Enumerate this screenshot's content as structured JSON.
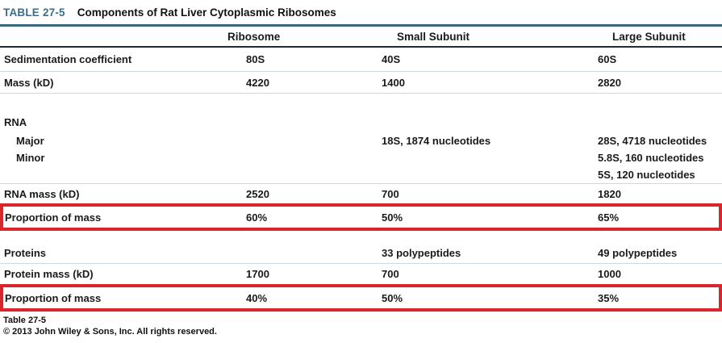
{
  "header": {
    "tag": "TABLE 27-5",
    "title": "Components of Rat Liver Cytoplasmic Ribosomes"
  },
  "table": {
    "columns": [
      "",
      "Ribosome",
      "Small Subunit",
      "Large Subunit"
    ],
    "rows": [
      {
        "label": "Sedimentation coefficient",
        "values": [
          "80S",
          "40S",
          "60S"
        ]
      },
      {
        "label": "Mass (kD)",
        "values": [
          "4220",
          "1400",
          "2820"
        ]
      },
      {
        "label": "RNA",
        "section": true,
        "values": [
          "",
          "",
          ""
        ]
      },
      {
        "label": "Major",
        "indent": true,
        "values": [
          "",
          "18S, 1874 nucleotides",
          "28S, 4718 nucleotides"
        ]
      },
      {
        "label": "Minor",
        "indent": true,
        "values": [
          "",
          "",
          "5.8S, 160 nucleotides"
        ]
      },
      {
        "label": "",
        "values": [
          "",
          "",
          "5S, 120 nucleotides"
        ]
      },
      {
        "label": "RNA mass (kD)",
        "values": [
          "2520",
          "700",
          "1820"
        ]
      },
      {
        "label": "Proportion of mass",
        "highlighted": true,
        "values": [
          "60%",
          "50%",
          "65%"
        ]
      },
      {
        "label": "Proteins",
        "section": true,
        "values": [
          "",
          "33 polypeptides",
          "49 polypeptides"
        ]
      },
      {
        "label": "Protein mass (kD)",
        "values": [
          "1700",
          "700",
          "1000"
        ]
      },
      {
        "label": "Proportion of mass",
        "highlighted": true,
        "values": [
          "40%",
          "50%",
          "35%"
        ]
      }
    ]
  },
  "footer": {
    "line1": "Table 27-5",
    "line2": "© 2013 John Wiley & Sons, Inc. All rights reserved."
  },
  "colors": {
    "accent_teal": "#33708f",
    "rule_teal": "#3a6881",
    "header_underline": "#1d2d3a",
    "row_separator": "#c9d9df",
    "highlight_red": "#d8262c",
    "text": "#1a1a1a"
  }
}
